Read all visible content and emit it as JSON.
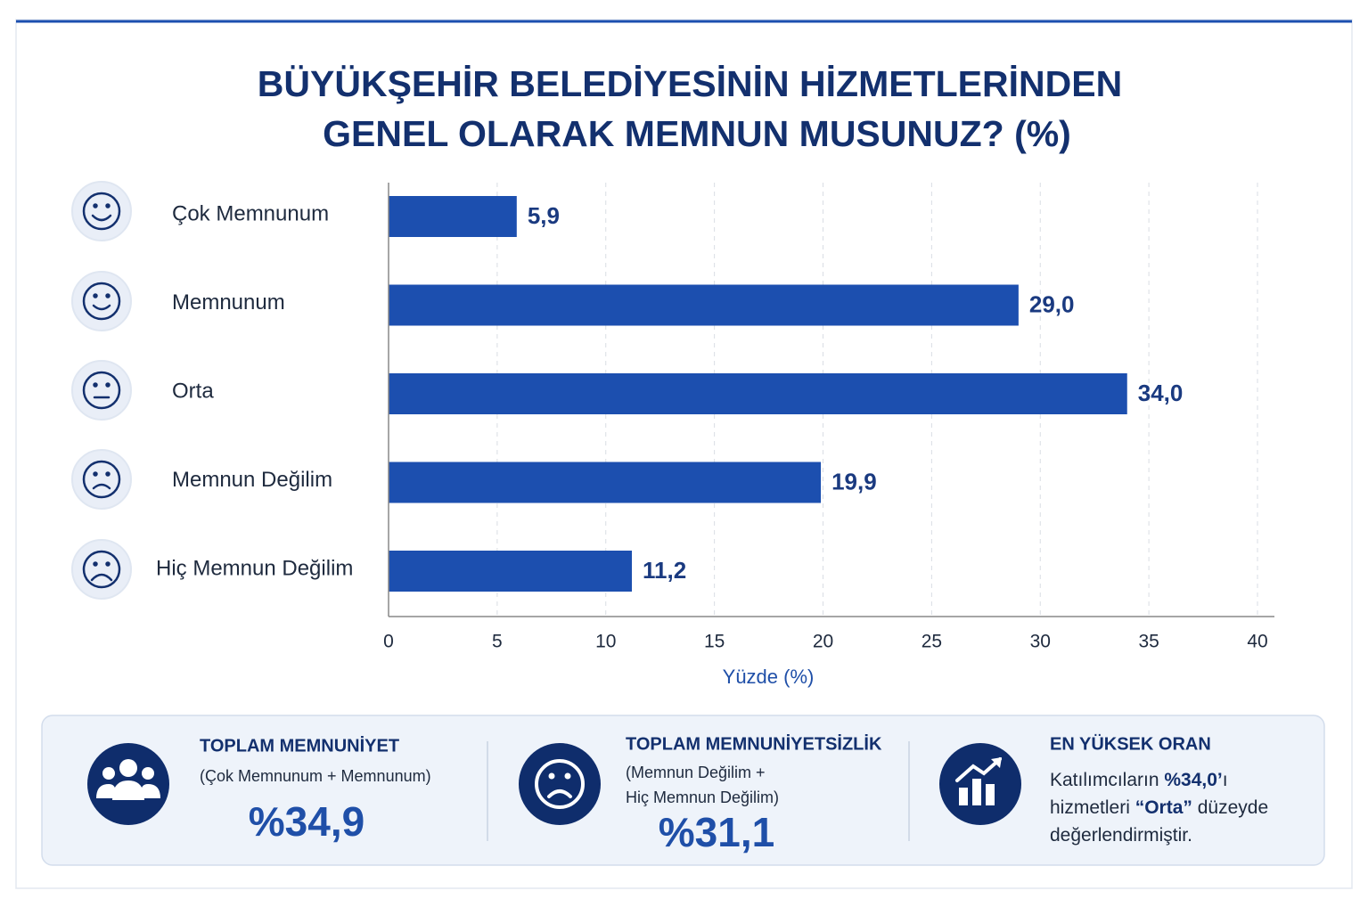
{
  "chart_data": {
    "type": "bar",
    "orientation": "horizontal",
    "title": [
      "BÜYÜKŞEHİR BELEDİYESİNİN HİZMETLERİNDEN",
      "GENEL OLARAK MEMNUN MUSUNUZ? (%)"
    ],
    "categories": [
      "Çok Memnunum",
      "Memnunum",
      "Orta",
      "Memnun Değilim",
      "Hiç Memnun Değilim"
    ],
    "values": [
      5.9,
      29.0,
      34.0,
      19.9,
      11.2
    ],
    "value_labels": [
      "5,9",
      "29,0",
      "34,0",
      "19,9",
      "11,2"
    ],
    "color": "#1c4faf",
    "xlim": [
      0,
      40
    ],
    "xticks": [
      0,
      5,
      10,
      15,
      20,
      25,
      30,
      35,
      40
    ],
    "xlabel": "Yüzde (%)",
    "grid": true
  },
  "summary": [
    {
      "title": "TOPLAM MEMNUNİYET",
      "lines": [
        "(Çok Memnunum + Memnunum)"
      ],
      "value": "%34,9"
    },
    {
      "title": "TOPLAM MEMNUNİYETSİZLİK",
      "lines": [
        "(Memnun Değilim +",
        "Hiç Memnun Değilim)"
      ],
      "value": "%31,1"
    },
    {
      "title": "EN YÜKSEK ORAN",
      "rich_lines": [
        [
          {
            "text": "Katılımcıların ",
            "bold": false
          },
          {
            "text": "%34,0’",
            "bold": true
          },
          {
            "text": "ı",
            "bold": false
          }
        ],
        [
          {
            "text": "hizmetleri ",
            "bold": false
          },
          {
            "text": "“Orta”",
            "bold": true
          },
          {
            "text": " düzeyde",
            "bold": false
          }
        ],
        [
          {
            "text": "değerlendirmiştir.",
            "bold": false
          }
        ]
      ]
    }
  ]
}
